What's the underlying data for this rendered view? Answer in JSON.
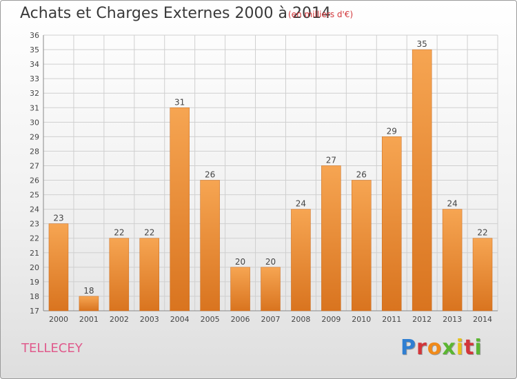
{
  "title": "Achats et Charges Externes 2000 à 2014",
  "subtitle": "(en milliers d'€)",
  "location": "TELLECEY",
  "logo": [
    "P",
    "r",
    "o",
    "x",
    "i",
    "t",
    "i"
  ],
  "chart_data": {
    "type": "bar",
    "title": "Achats et Charges Externes 2000 à 2014",
    "subtitle": "(en milliers d'€)",
    "xlabel": "",
    "ylabel": "",
    "categories": [
      "2000",
      "2001",
      "2002",
      "2003",
      "2004",
      "2005",
      "2006",
      "2007",
      "2008",
      "2009",
      "2010",
      "2011",
      "2012",
      "2013",
      "2014"
    ],
    "values": [
      23,
      18,
      22,
      22,
      31,
      26,
      20,
      20,
      24,
      27,
      26,
      29,
      35,
      24,
      22
    ],
    "ylim": [
      17,
      36
    ],
    "yticks": [
      17,
      18,
      19,
      20,
      21,
      22,
      23,
      24,
      25,
      26,
      27,
      28,
      29,
      30,
      31,
      32,
      33,
      34,
      35,
      36
    ],
    "grid": true,
    "bar_color": "#e8862f",
    "bar_color_light": "#f7a95a",
    "grid_color": "#cfcfcf"
  }
}
